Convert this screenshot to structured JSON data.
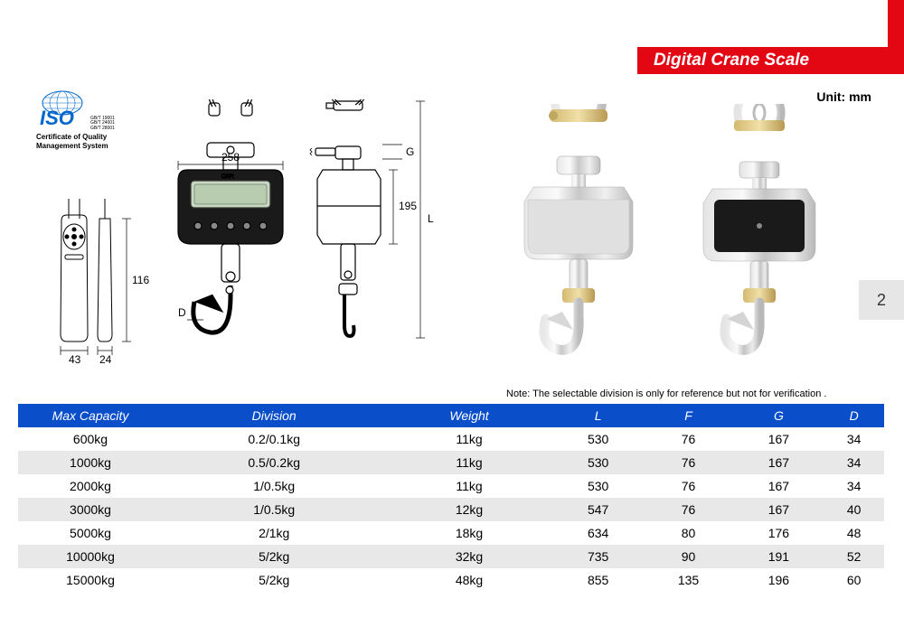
{
  "header": {
    "title": "Digital Crane Scale",
    "unit_label": "Unit: mm",
    "page_number": "2",
    "accent_color": "#e30613",
    "header_bg": "#0a4fc9"
  },
  "iso": {
    "logo_text": "ISO",
    "codes": [
      "GB/T 19001",
      "GB/T 24001",
      "GB/T 28001"
    ],
    "caption_line1": "Certificate of Quality",
    "caption_line2": "Management System",
    "logo_color": "#0066cc"
  },
  "diagrams": {
    "remote": {
      "width_label": "43",
      "depth_label": "24",
      "height_label": "116"
    },
    "scale": {
      "width_label": "258",
      "body_height_label": "195",
      "total_height_label": "L",
      "g_label": "G",
      "d_label": "D"
    }
  },
  "note": "Note: The selectable division is only for reference but not for verification .",
  "table": {
    "columns": [
      "Max Capacity",
      "Division",
      "Weight",
      "L",
      "F",
      "G",
      "D"
    ],
    "rows": [
      [
        "600kg",
        "0.2/0.1kg",
        "11kg",
        "530",
        "76",
        "167",
        "34"
      ],
      [
        "1000kg",
        "0.5/0.2kg",
        "11kg",
        "530",
        "76",
        "167",
        "34"
      ],
      [
        "2000kg",
        "1/0.5kg",
        "11kg",
        "530",
        "76",
        "167",
        "34"
      ],
      [
        "3000kg",
        "1/0.5kg",
        "12kg",
        "547",
        "76",
        "167",
        "40"
      ],
      [
        "5000kg",
        "2/1kg",
        "18kg",
        "634",
        "80",
        "176",
        "48"
      ],
      [
        "10000kg",
        "5/2kg",
        "32kg",
        "735",
        "90",
        "191",
        "52"
      ],
      [
        "15000kg",
        "5/2kg",
        "48kg",
        "855",
        "135",
        "196",
        "60"
      ]
    ],
    "row_odd_bg": "#ffffff",
    "row_even_bg": "#e8e8e8"
  }
}
